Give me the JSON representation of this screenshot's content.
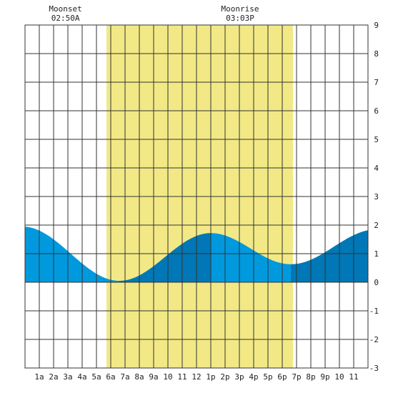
{
  "chart_data": {
    "type": "area",
    "title": "",
    "xlabel": "",
    "ylabel": "",
    "x_unit": "hours",
    "xlim": [
      0,
      24
    ],
    "ylim": [
      -3,
      9
    ],
    "y_ticks": [
      -3,
      -2,
      -1,
      0,
      1,
      2,
      3,
      4,
      5,
      6,
      7,
      8,
      9
    ],
    "x_tick_labels": [
      {
        "hour": 1,
        "label": "1a"
      },
      {
        "hour": 2,
        "label": "2a"
      },
      {
        "hour": 3,
        "label": "3a"
      },
      {
        "hour": 4,
        "label": "4a"
      },
      {
        "hour": 5,
        "label": "5a"
      },
      {
        "hour": 6,
        "label": "6a"
      },
      {
        "hour": 7,
        "label": "7a"
      },
      {
        "hour": 8,
        "label": "8a"
      },
      {
        "hour": 9,
        "label": "9a"
      },
      {
        "hour": 10,
        "label": "10"
      },
      {
        "hour": 11,
        "label": "11"
      },
      {
        "hour": 12,
        "label": "12"
      },
      {
        "hour": 13,
        "label": "1p"
      },
      {
        "hour": 14,
        "label": "2p"
      },
      {
        "hour": 15,
        "label": "3p"
      },
      {
        "hour": 16,
        "label": "4p"
      },
      {
        "hour": 17,
        "label": "5p"
      },
      {
        "hour": 18,
        "label": "6p"
      },
      {
        "hour": 19,
        "label": "7p"
      },
      {
        "hour": 20,
        "label": "8p"
      },
      {
        "hour": 21,
        "label": "9p"
      },
      {
        "hour": 22,
        "label": "10"
      },
      {
        "hour": 23,
        "label": "11"
      }
    ],
    "daylight": {
      "start": 5.7,
      "end": 18.75,
      "color": "#f2e986"
    },
    "grid": true,
    "tide_extremes": [
      {
        "hour": -0.2,
        "height": 1.95
      },
      {
        "hour": 6.6,
        "height": 0.05
      },
      {
        "hour": 13.0,
        "height": 1.72
      },
      {
        "hour": 18.6,
        "height": 0.63
      },
      {
        "hour": 24.6,
        "height": 1.85
      }
    ],
    "tide_phases": [
      {
        "start": 0,
        "end": 6.6,
        "trend": "falling"
      },
      {
        "start": 6.6,
        "end": 13.0,
        "trend": "rising"
      },
      {
        "start": 13.0,
        "end": 18.6,
        "trend": "falling"
      },
      {
        "start": 18.6,
        "end": 24,
        "trend": "rising"
      }
    ],
    "colors": {
      "falling": "#0099dd",
      "rising": "#0077b6",
      "grid": "#333333",
      "text": "#222222"
    },
    "annotations": [
      {
        "name": "moonset",
        "label": "Moonset",
        "time": "02:50A",
        "hour": 2.83
      },
      {
        "name": "moonrise",
        "label": "Moonrise",
        "time": "03:03P",
        "hour": 15.05
      }
    ]
  }
}
